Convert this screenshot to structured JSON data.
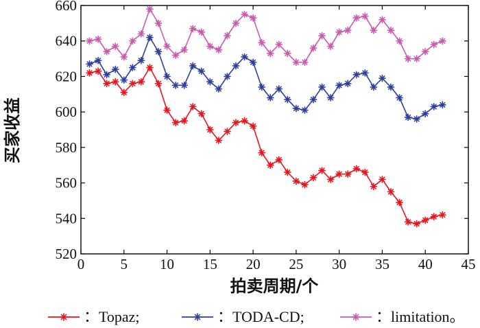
{
  "chart_data": {
    "type": "line",
    "xlabel": "拍卖周期/个",
    "ylabel": "买家收益",
    "xlim": [
      0,
      45
    ],
    "ylim": [
      520,
      660
    ],
    "xticks": [
      0,
      5,
      10,
      15,
      20,
      25,
      30,
      35,
      40,
      45
    ],
    "yticks": [
      520,
      540,
      560,
      580,
      600,
      620,
      640,
      660
    ],
    "grid": false,
    "legend_position": "bottom",
    "x": [
      1,
      2,
      3,
      4,
      5,
      6,
      7,
      8,
      9,
      10,
      11,
      12,
      13,
      14,
      15,
      16,
      17,
      18,
      19,
      20,
      21,
      22,
      23,
      24,
      25,
      26,
      27,
      28,
      29,
      30,
      31,
      32,
      33,
      34,
      35,
      36,
      37,
      38,
      39,
      40,
      41,
      42
    ],
    "series": [
      {
        "name": "Topaz",
        "legend_label": "：Topaz;",
        "color": "#e8141c",
        "values": [
          622,
          623,
          616,
          617,
          611,
          616,
          617,
          625,
          616,
          601,
          594,
          595,
          603,
          599,
          590,
          584,
          589,
          594,
          595,
          592,
          577,
          570,
          573,
          566,
          561,
          559,
          563,
          567,
          562,
          565,
          565,
          568,
          566,
          558,
          562,
          555,
          549,
          538,
          537,
          539,
          541,
          542
        ]
      },
      {
        "name": "TODA-CD",
        "legend_label": "：TODA-CD;",
        "color": "#2d3e9b",
        "values": [
          627,
          629,
          621,
          624,
          618,
          625,
          629,
          642,
          634,
          620,
          615,
          615,
          626,
          623,
          617,
          613,
          620,
          626,
          631,
          628,
          614,
          608,
          613,
          607,
          602,
          601,
          607,
          614,
          608,
          615,
          616,
          621,
          622,
          614,
          619,
          614,
          608,
          597,
          596,
          599,
          603,
          604
        ]
      },
      {
        "name": "limitation",
        "legend_label": "：limitation。",
        "color": "#c85ab0",
        "values": [
          640,
          641,
          634,
          637,
          631,
          640,
          644,
          658,
          650,
          637,
          632,
          635,
          647,
          645,
          637,
          635,
          643,
          650,
          655,
          653,
          639,
          633,
          638,
          633,
          628,
          628,
          636,
          643,
          637,
          645,
          646,
          653,
          654,
          646,
          652,
          646,
          640,
          630,
          630,
          634,
          638,
          640
        ]
      }
    ]
  }
}
